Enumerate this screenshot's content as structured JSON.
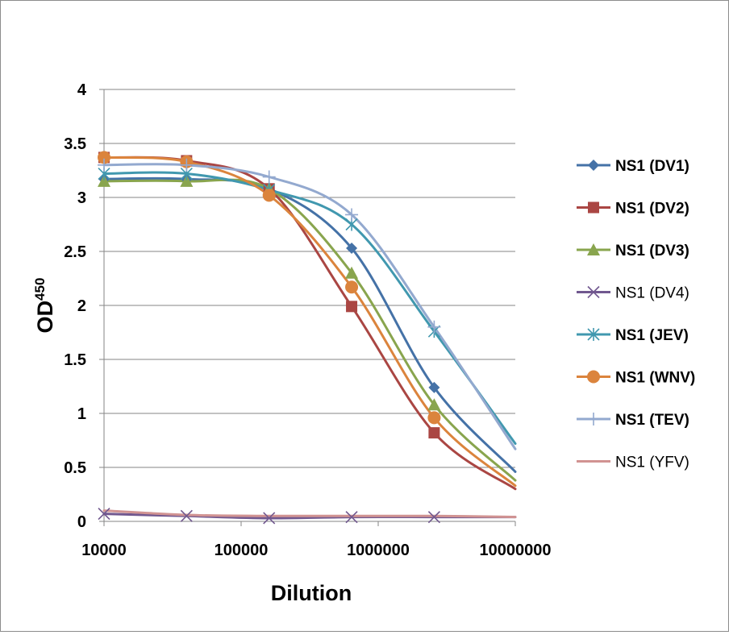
{
  "chart_data": {
    "type": "line",
    "title": "",
    "xlabel": "Dilution",
    "ylabel": "OD",
    "ylabel_superscript": "450",
    "x_scale": "log",
    "xlim": [
      10000,
      10000000
    ],
    "ylim": [
      0,
      4
    ],
    "x_ticks": [
      "10000",
      "100000",
      "1000000",
      "10000000"
    ],
    "y_ticks": [
      "0",
      "0.5",
      "1",
      "1.5",
      "2",
      "2.5",
      "3",
      "3.5",
      "4"
    ],
    "grid": "horizontal",
    "legend_position": "right",
    "x": [
      10000,
      40000,
      160000,
      640000,
      2560000
    ],
    "series": [
      {
        "name": "NS1 (DV1)",
        "bold": true,
        "color": "#4572a7",
        "marker": "diamond",
        "values": [
          3.17,
          3.17,
          3.08,
          2.53,
          1.24
        ],
        "end_value": 0.46
      },
      {
        "name": "NS1 (DV2)",
        "bold": true,
        "color": "#aa4643",
        "marker": "square",
        "values": [
          3.37,
          3.34,
          3.08,
          1.99,
          0.82
        ],
        "end_value": 0.3
      },
      {
        "name": "NS1 (DV3)",
        "bold": true,
        "color": "#89a54e",
        "marker": "triangle",
        "values": [
          3.15,
          3.15,
          3.08,
          2.3,
          1.08
        ],
        "end_value": 0.38
      },
      {
        "name": "NS1 (DV4)",
        "bold": false,
        "color": "#71588f",
        "marker": "x",
        "values": [
          0.07,
          0.05,
          0.03,
          0.04,
          0.04
        ],
        "end_value": 0.04
      },
      {
        "name": "NS1 (JEV)",
        "bold": true,
        "color": "#4198af",
        "marker": "asterisk",
        "values": [
          3.22,
          3.22,
          3.07,
          2.75,
          1.76
        ],
        "end_value": 0.72
      },
      {
        "name": "NS1 (WNV)",
        "bold": true,
        "color": "#db843d",
        "marker": "circle",
        "values": [
          3.37,
          3.33,
          3.02,
          2.17,
          0.96
        ],
        "end_value": 0.33
      },
      {
        "name": "NS1 (TEV)",
        "bold": true,
        "color": "#93a9cf",
        "marker": "plus",
        "values": [
          3.3,
          3.3,
          3.19,
          2.84,
          1.8
        ],
        "end_value": 0.67
      },
      {
        "name": "NS1 (YFV)",
        "bold": false,
        "color": "#d19392",
        "marker": "none",
        "values": [
          0.1,
          0.06,
          0.05,
          0.05,
          0.05
        ],
        "end_value": 0.04
      }
    ]
  }
}
